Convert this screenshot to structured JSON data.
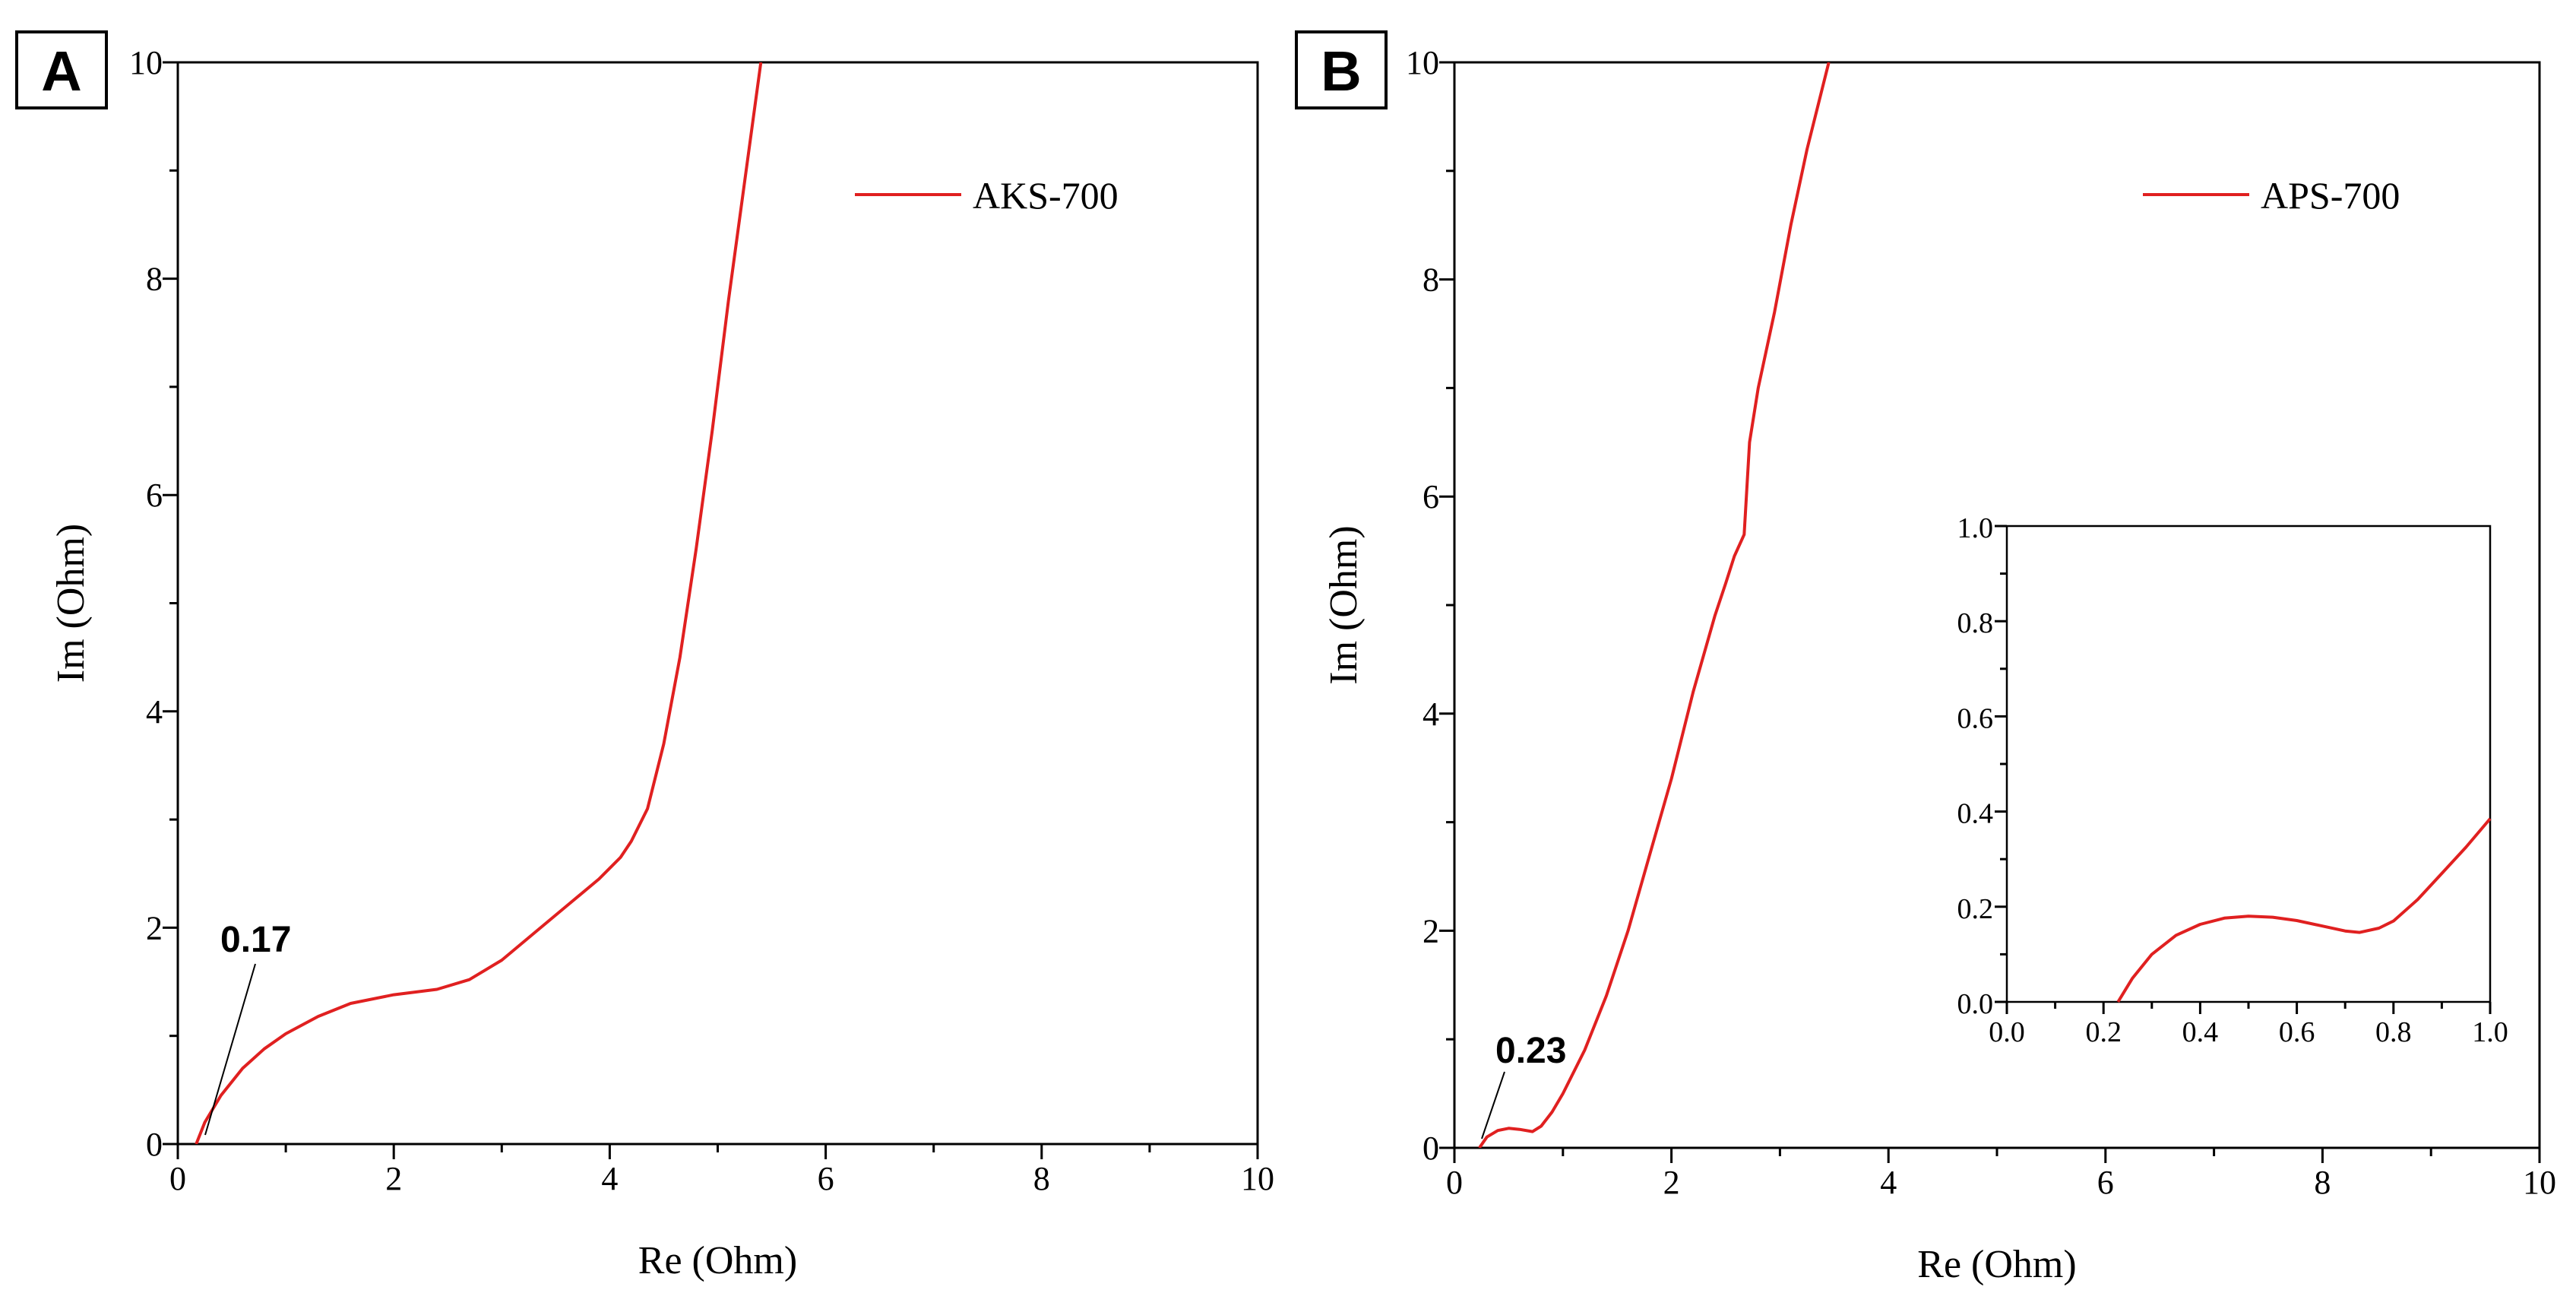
{
  "chart_data": [
    {
      "type": "line",
      "panel_label": "A",
      "xlabel": "Re (Ohm)",
      "ylabel": "Im (Ohm)",
      "xlim": [
        0,
        10
      ],
      "ylim": [
        0,
        10
      ],
      "xticks": [
        "0",
        "2",
        "4",
        "6",
        "8",
        "10"
      ],
      "yticks": [
        "0",
        "2",
        "4",
        "6",
        "8",
        "10"
      ],
      "legend_position": "top-right",
      "annotation": {
        "text": "0.17",
        "x": 0.17,
        "y": 0
      },
      "series": [
        {
          "name": "AKS-700",
          "color": "#e02020",
          "x": [
            0.17,
            0.25,
            0.4,
            0.6,
            0.8,
            1.0,
            1.3,
            1.6,
            2.0,
            2.4,
            2.7,
            3.0,
            3.3,
            3.6,
            3.9,
            4.1,
            4.2,
            4.35,
            4.5,
            4.65,
            4.8,
            4.95,
            5.1,
            5.25,
            5.4
          ],
          "y": [
            0,
            0.2,
            0.45,
            0.7,
            0.88,
            1.02,
            1.18,
            1.3,
            1.38,
            1.43,
            1.52,
            1.7,
            1.95,
            2.2,
            2.45,
            2.65,
            2.8,
            3.1,
            3.7,
            4.5,
            5.5,
            6.6,
            7.8,
            8.9,
            10.0
          ]
        }
      ]
    },
    {
      "type": "line",
      "panel_label": "B",
      "xlabel": "Re (Ohm)",
      "ylabel": "Im (Ohm)",
      "xlim": [
        0,
        10
      ],
      "ylim": [
        0,
        10
      ],
      "xticks": [
        "0",
        "2",
        "4",
        "6",
        "8",
        "10"
      ],
      "yticks": [
        "0",
        "2",
        "4",
        "6",
        "8",
        "10"
      ],
      "legend_position": "top-right",
      "annotation": {
        "text": "0.23",
        "x": 0.23,
        "y": 0
      },
      "series": [
        {
          "name": "APS-700",
          "color": "#e02020",
          "x": [
            0.23,
            0.3,
            0.4,
            0.5,
            0.6,
            0.72,
            0.8,
            0.9,
            1.0,
            1.2,
            1.4,
            1.6,
            1.8,
            2.0,
            2.2,
            2.4,
            2.5,
            2.58,
            2.67,
            2.72,
            2.8,
            2.95,
            3.1,
            3.25,
            3.45
          ],
          "y": [
            0,
            0.1,
            0.16,
            0.18,
            0.17,
            0.15,
            0.2,
            0.33,
            0.5,
            0.9,
            1.4,
            2.0,
            2.7,
            3.4,
            4.2,
            4.9,
            5.2,
            5.45,
            5.65,
            6.5,
            7.0,
            7.7,
            8.5,
            9.2,
            10.0
          ]
        }
      ],
      "inset": {
        "xlim": [
          0.0,
          1.0
        ],
        "ylim": [
          0.0,
          1.0
        ],
        "xticks": [
          "0.0",
          "0.2",
          "0.4",
          "0.6",
          "0.8",
          "1.0"
        ],
        "yticks": [
          "0.0",
          "0.2",
          "0.4",
          "0.6",
          "0.8",
          "1.0"
        ],
        "x": [
          0.23,
          0.26,
          0.3,
          0.35,
          0.4,
          0.45,
          0.5,
          0.55,
          0.6,
          0.65,
          0.7,
          0.73,
          0.77,
          0.8,
          0.85,
          0.9,
          0.95,
          1.0
        ],
        "y": [
          0.0,
          0.05,
          0.1,
          0.14,
          0.163,
          0.176,
          0.18,
          0.178,
          0.171,
          0.16,
          0.149,
          0.146,
          0.155,
          0.17,
          0.215,
          0.27,
          0.325,
          0.385
        ]
      }
    }
  ]
}
